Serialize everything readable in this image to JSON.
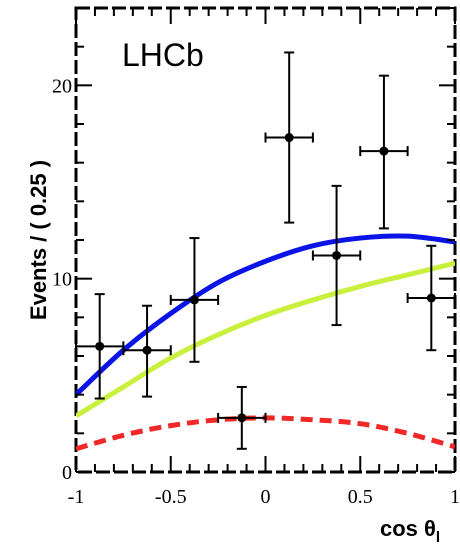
{
  "chart_data": {
    "type": "scatter",
    "experiment_label": "LHCb",
    "xlabel": "cos θ",
    "xlabel_subscript": "l",
    "ylabel": "Events / ( 0.25 )",
    "xlim": [
      -1,
      1
    ],
    "ylim": [
      0,
      24
    ],
    "x_ticks": [
      -1,
      -0.5,
      0,
      0.5,
      1
    ],
    "x_tick_labels": [
      "-1",
      "-0.5",
      "0",
      "0.5",
      "1"
    ],
    "y_ticks": [
      0,
      10,
      20
    ],
    "y_tick_labels": [
      "0",
      "10",
      "20"
    ],
    "grid": false,
    "data_points": [
      {
        "x": -0.875,
        "y": 6.5,
        "xerr": 0.125,
        "yerr_low": 2.7,
        "yerr_high": 2.7
      },
      {
        "x": -0.625,
        "y": 6.3,
        "xerr": 0.125,
        "yerr_low": 2.4,
        "yerr_high": 2.3
      },
      {
        "x": -0.375,
        "y": 8.9,
        "xerr": 0.125,
        "yerr_low": 3.2,
        "yerr_high": 3.2
      },
      {
        "x": -0.125,
        "y": 2.8,
        "xerr": 0.125,
        "yerr_low": 1.6,
        "yerr_high": 1.6
      },
      {
        "x": 0.125,
        "y": 17.3,
        "xerr": 0.125,
        "yerr_low": 4.4,
        "yerr_high": 4.4
      },
      {
        "x": 0.375,
        "y": 11.2,
        "xerr": 0.125,
        "yerr_low": 3.6,
        "yerr_high": 3.6
      },
      {
        "x": 0.625,
        "y": 16.6,
        "xerr": 0.125,
        "yerr_low": 4.0,
        "yerr_high": 3.9
      },
      {
        "x": 0.875,
        "y": 9.0,
        "xerr": 0.125,
        "yerr_low": 2.7,
        "yerr_high": 2.7
      }
    ],
    "curves": [
      {
        "color": "#0a14e6",
        "style": "solid",
        "x": [
          -1,
          -0.75,
          -0.5,
          -0.25,
          0,
          0.25,
          0.5,
          0.75,
          1
        ],
        "y": [
          4.0,
          6.3,
          8.2,
          9.8,
          10.9,
          11.7,
          12.1,
          12.2,
          11.9
        ]
      },
      {
        "color": "#c8f03c",
        "style": "solid",
        "x": [
          -1,
          -0.75,
          -0.5,
          -0.25,
          0,
          0.25,
          0.5,
          0.75,
          1
        ],
        "y": [
          2.9,
          4.4,
          5.9,
          7.1,
          8.1,
          8.9,
          9.6,
          10.2,
          10.8
        ]
      },
      {
        "color": "#f02828",
        "style": "dashed",
        "x": [
          -1,
          -0.75,
          -0.5,
          -0.25,
          0,
          0.25,
          0.5,
          0.75,
          1
        ],
        "y": [
          1.2,
          1.9,
          2.4,
          2.7,
          2.8,
          2.7,
          2.5,
          2.0,
          1.3
        ]
      }
    ],
    "marker_color": "#000000"
  }
}
